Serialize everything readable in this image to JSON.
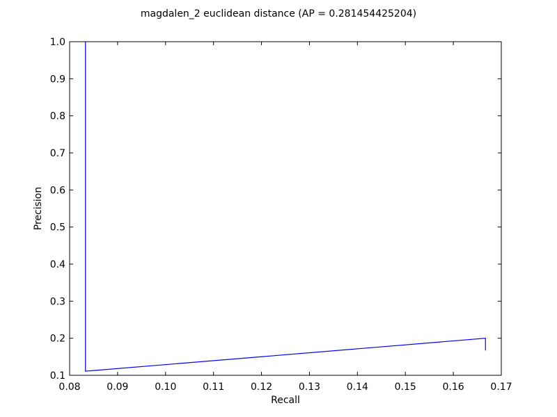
{
  "chart_data": {
    "type": "line",
    "title": "magdalen_2 euclidean distance  (AP = 0.281454425204)",
    "xlabel": "Recall",
    "ylabel": "Precision",
    "xlim": [
      0.08,
      0.17
    ],
    "ylim": [
      0.1,
      1.0
    ],
    "xticks": [
      "0.08",
      "0.09",
      "0.10",
      "0.11",
      "0.12",
      "0.13",
      "0.14",
      "0.15",
      "0.16",
      "0.17"
    ],
    "yticks": [
      "0.1",
      "0.2",
      "0.3",
      "0.4",
      "0.5",
      "0.6",
      "0.7",
      "0.8",
      "0.9",
      "1.0"
    ],
    "grid": false,
    "series": [
      {
        "color": "#0000ff",
        "x": [
          0.0833,
          0.0833,
          0.0833,
          0.1667,
          0.1667
        ],
        "y": [
          1.0,
          0.5,
          0.111,
          0.2,
          0.167
        ]
      }
    ]
  }
}
